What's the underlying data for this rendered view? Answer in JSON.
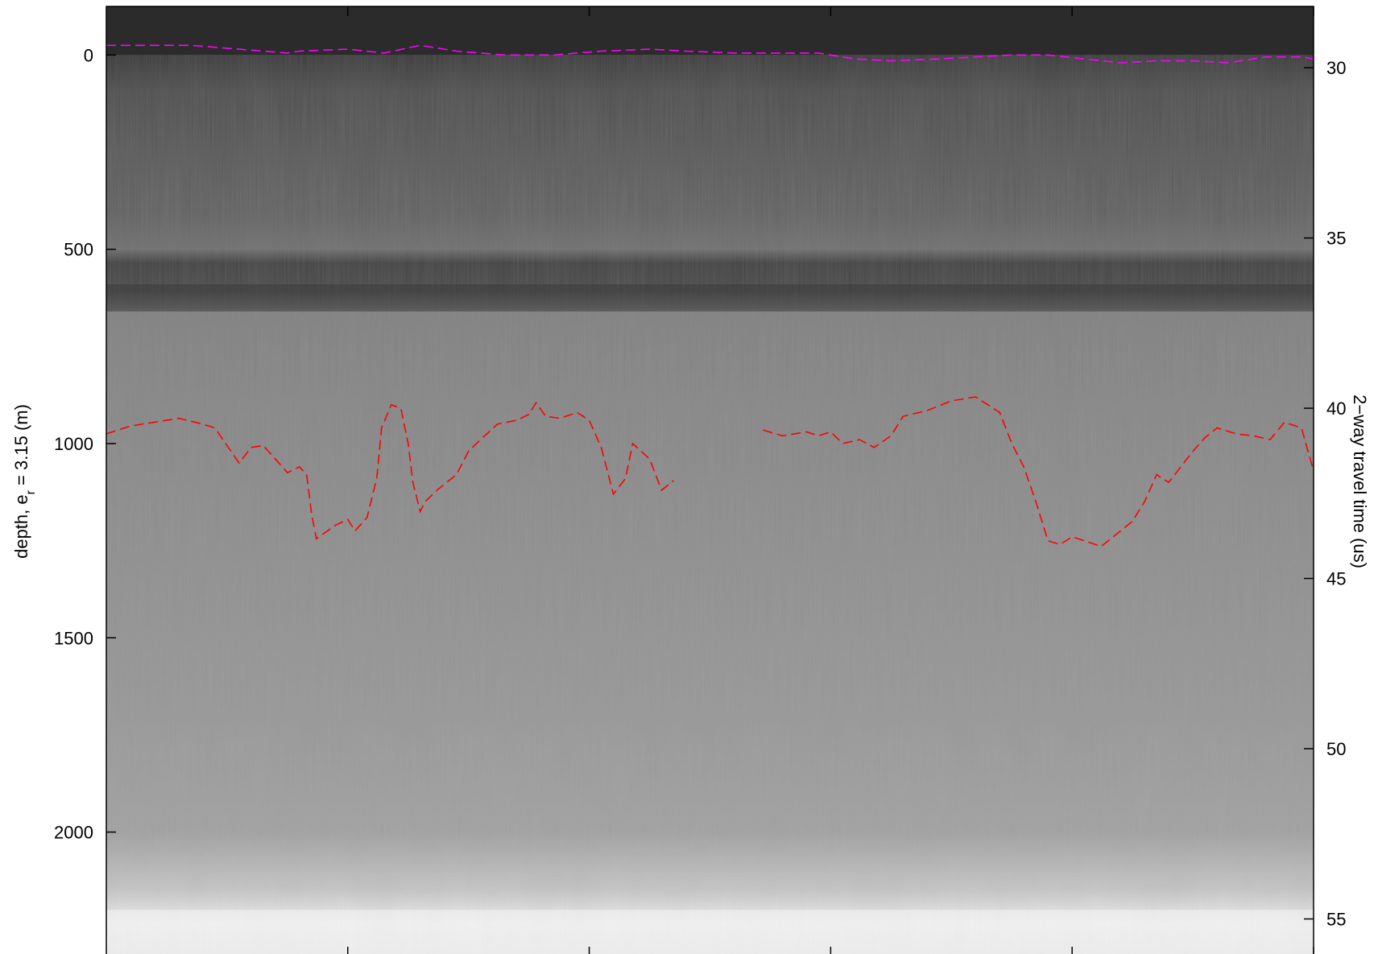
{
  "chart_data": {
    "type": "radargram",
    "left_axis": {
      "label_main": "depth, e",
      "label_sub": "r",
      "label_tail": " = 3.15 (m)",
      "ticks": [
        0,
        500,
        1000,
        1500,
        2000
      ],
      "ylim": [
        -125,
        2320
      ]
    },
    "right_axis": {
      "label": "2−way travel time (us)",
      "ticks": [
        30,
        35,
        40,
        45,
        50,
        55
      ],
      "ylim": [
        28.2,
        56.1
      ]
    },
    "x_axis": {
      "ticks": [
        1,
        2,
        3,
        4,
        5
      ],
      "show_labels": false,
      "xlim": [
        0,
        5.0
      ]
    },
    "grid": false,
    "colormap": "grayscale",
    "features": {
      "dark_band_depth": [
        590,
        660
      ],
      "bright_floor_depth": [
        2200,
        2320
      ]
    },
    "series": [
      {
        "color": "#ff00ff",
        "style": "dashed",
        "points": [
          [
            0.0,
            -25
          ],
          [
            0.2,
            -25
          ],
          [
            0.35,
            -25
          ],
          [
            0.55,
            -15
          ],
          [
            0.75,
            -5
          ],
          [
            0.8,
            -10
          ],
          [
            1.0,
            -15
          ],
          [
            1.15,
            -5
          ],
          [
            1.3,
            -25
          ],
          [
            1.45,
            -10
          ],
          [
            1.65,
            0
          ],
          [
            1.85,
            0
          ],
          [
            2.05,
            -10
          ],
          [
            2.25,
            -15
          ],
          [
            2.4,
            -10
          ],
          [
            2.6,
            -5
          ],
          [
            2.8,
            -5
          ],
          [
            2.95,
            -5
          ],
          [
            3.1,
            10
          ],
          [
            3.25,
            15
          ],
          [
            3.45,
            10
          ],
          [
            3.6,
            5
          ],
          [
            3.75,
            0
          ],
          [
            3.9,
            0
          ],
          [
            4.05,
            10
          ],
          [
            4.2,
            20
          ],
          [
            4.35,
            15
          ],
          [
            4.5,
            15
          ],
          [
            4.65,
            20
          ],
          [
            4.8,
            5
          ],
          [
            4.95,
            5
          ],
          [
            5.0,
            10
          ]
        ]
      },
      {
        "color": "#ff0000",
        "style": "dashed",
        "points": [
          [
            0.0,
            975
          ],
          [
            0.1,
            955
          ],
          [
            0.2,
            945
          ],
          [
            0.3,
            935
          ],
          [
            0.4,
            950
          ],
          [
            0.45,
            960
          ],
          [
            0.5,
            1005
          ],
          [
            0.55,
            1050
          ],
          [
            0.6,
            1010
          ],
          [
            0.65,
            1005
          ],
          [
            0.7,
            1040
          ],
          [
            0.75,
            1075
          ],
          [
            0.8,
            1060
          ],
          [
            0.83,
            1080
          ],
          [
            0.85,
            1180
          ],
          [
            0.87,
            1245
          ],
          [
            0.95,
            1210
          ],
          [
            1.0,
            1195
          ],
          [
            1.03,
            1225
          ],
          [
            1.08,
            1190
          ],
          [
            1.12,
            1090
          ],
          [
            1.14,
            960
          ],
          [
            1.18,
            900
          ],
          [
            1.22,
            910
          ],
          [
            1.25,
            1000
          ],
          [
            1.27,
            1100
          ],
          [
            1.3,
            1175
          ],
          [
            1.32,
            1150
          ],
          [
            1.37,
            1120
          ],
          [
            1.45,
            1080
          ],
          [
            1.5,
            1020
          ],
          [
            1.55,
            990
          ],
          [
            1.62,
            950
          ],
          [
            1.7,
            940
          ],
          [
            1.75,
            925
          ],
          [
            1.78,
            895
          ],
          [
            1.82,
            930
          ],
          [
            1.88,
            935
          ],
          [
            1.95,
            920
          ],
          [
            2.0,
            940
          ],
          [
            2.05,
            1010
          ],
          [
            2.1,
            1130
          ],
          [
            2.15,
            1090
          ],
          [
            2.18,
            1000
          ],
          [
            2.25,
            1040
          ],
          [
            2.3,
            1120
          ],
          [
            2.35,
            1095
          ]
        ]
      },
      {
        "color": "#ff0000",
        "style": "dashed",
        "points": [
          [
            2.72,
            965
          ],
          [
            2.8,
            980
          ],
          [
            2.9,
            970
          ],
          [
            2.95,
            980
          ],
          [
            3.0,
            970
          ],
          [
            3.05,
            1000
          ],
          [
            3.12,
            990
          ],
          [
            3.18,
            1010
          ],
          [
            3.25,
            980
          ],
          [
            3.3,
            930
          ],
          [
            3.4,
            915
          ],
          [
            3.5,
            890
          ],
          [
            3.6,
            880
          ],
          [
            3.7,
            920
          ],
          [
            3.75,
            1000
          ],
          [
            3.8,
            1060
          ],
          [
            3.85,
            1150
          ],
          [
            3.9,
            1250
          ],
          [
            3.95,
            1260
          ],
          [
            4.0,
            1240
          ],
          [
            4.05,
            1250
          ],
          [
            4.12,
            1265
          ],
          [
            4.18,
            1235
          ],
          [
            4.25,
            1200
          ],
          [
            4.3,
            1150
          ],
          [
            4.35,
            1080
          ],
          [
            4.4,
            1100
          ],
          [
            4.5,
            1020
          ],
          [
            4.55,
            985
          ],
          [
            4.6,
            960
          ],
          [
            4.68,
            975
          ],
          [
            4.75,
            980
          ],
          [
            4.82,
            990
          ],
          [
            4.88,
            945
          ],
          [
            4.95,
            960
          ],
          [
            5.0,
            1070
          ]
        ]
      }
    ]
  }
}
